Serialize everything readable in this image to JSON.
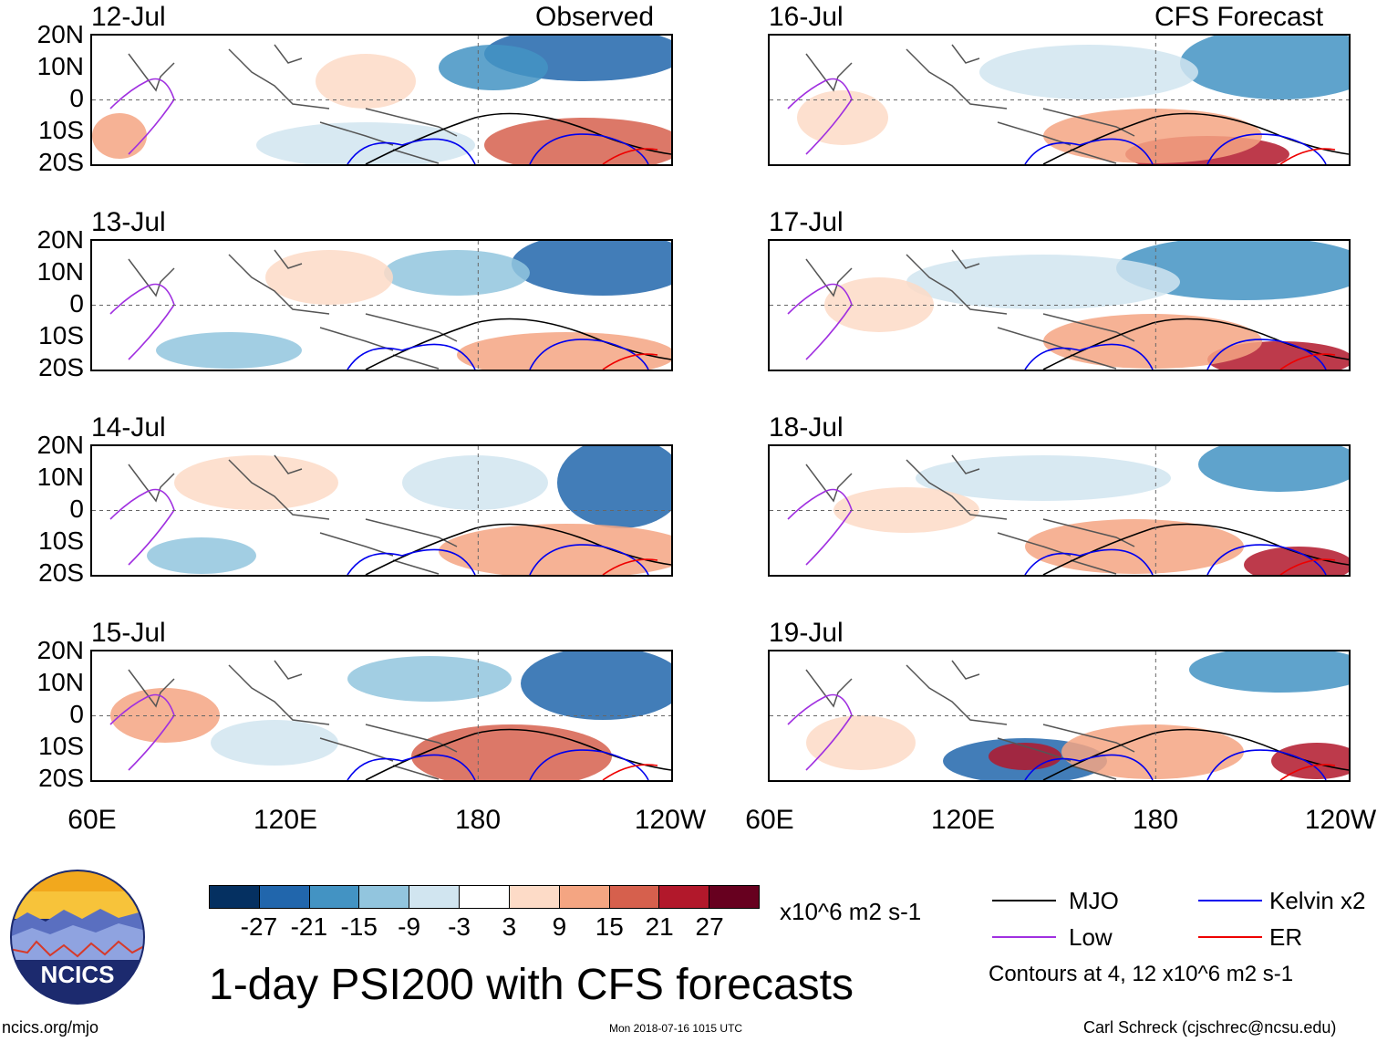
{
  "panel_titles": {
    "observed": "Observed",
    "forecast": "CFS Forecast"
  },
  "panels": [
    {
      "date": "12-Jul",
      "column": "observed"
    },
    {
      "date": "13-Jul",
      "column": "observed"
    },
    {
      "date": "14-Jul",
      "column": "observed"
    },
    {
      "date": "15-Jul",
      "column": "observed"
    },
    {
      "date": "16-Jul",
      "column": "forecast"
    },
    {
      "date": "17-Jul",
      "column": "forecast"
    },
    {
      "date": "18-Jul",
      "column": "forecast"
    },
    {
      "date": "19-Jul",
      "column": "forecast"
    }
  ],
  "lat_labels": [
    "20N",
    "10N",
    "0",
    "10S",
    "20S"
  ],
  "lon_labels": [
    "60E",
    "120E",
    "180",
    "120W"
  ],
  "colorbar": {
    "colors": [
      "#053061",
      "#2166ac",
      "#4393c3",
      "#92c5de",
      "#d1e5f0",
      "#ffffff",
      "#fddbc7",
      "#f4a582",
      "#d6604d",
      "#b2182b",
      "#67001f"
    ],
    "ticks": [
      "-27",
      "-21",
      "-15",
      "-9",
      "-3",
      "3",
      "9",
      "15",
      "21",
      "27"
    ],
    "units": "x10^6 m2 s-1"
  },
  "legend": {
    "items": [
      {
        "label": "MJO",
        "color": "#000000"
      },
      {
        "label": "Kelvin x2",
        "color": "#0000ee"
      },
      {
        "label": "Low",
        "color": "#a030e0"
      },
      {
        "label": "ER",
        "color": "#ee0000"
      }
    ],
    "contours_note": "Contours at 4, 12 x10^6 m2 s-1"
  },
  "title": "1-day PSI200 with CFS forecasts",
  "footer": {
    "left": "ncics.org/mjo",
    "center": "Mon 2018-07-16 1015 UTC",
    "right": "Carl Schreck (cjschrec@ncsu.edu)"
  },
  "logo": {
    "text": "NCICS"
  }
}
